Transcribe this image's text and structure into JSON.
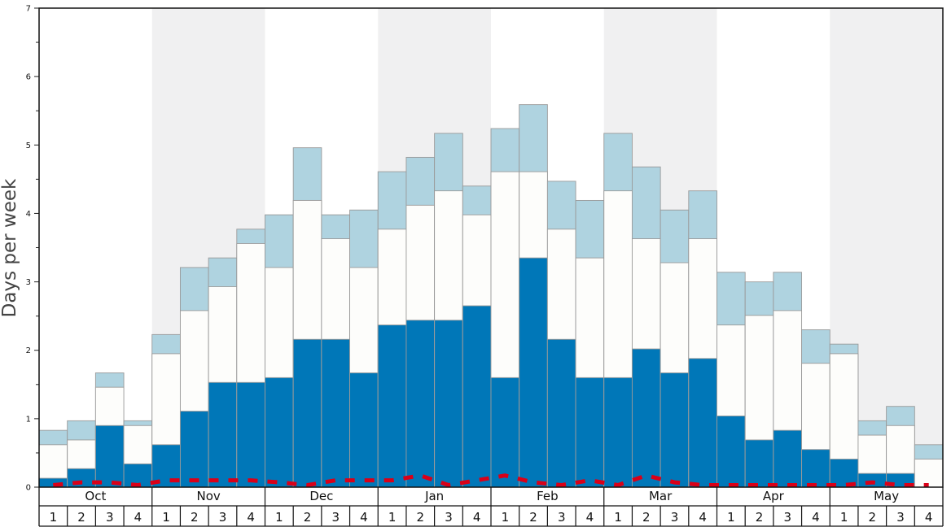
{
  "chart_data": {
    "type": "bar",
    "ylabel": "Days per week",
    "ylim": [
      0,
      7
    ],
    "y_ticks": [
      "0",
      "1",
      "2",
      "3",
      "4",
      "5",
      "6",
      "7"
    ],
    "months": [
      "Oct",
      "Nov",
      "Dec",
      "Jan",
      "Feb",
      "Mar",
      "Apr",
      "May"
    ],
    "week_labels": [
      "1",
      "2",
      "3",
      "4",
      "1",
      "2",
      "3",
      "4",
      "1",
      "2",
      "3",
      "4",
      "1",
      "2",
      "3",
      "4",
      "1",
      "2",
      "3",
      "4",
      "1",
      "2",
      "3",
      "4",
      "1",
      "2",
      "3",
      "4",
      "1",
      "2",
      "3",
      "4"
    ],
    "grid": false,
    "series": [
      {
        "color": "#0077b8",
        "values": [
          0.13,
          0.27,
          0.9,
          0.34,
          0.62,
          1.11,
          1.53,
          1.53,
          1.6,
          2.16,
          2.16,
          1.67,
          2.37,
          2.44,
          2.44,
          2.65,
          1.6,
          3.35,
          2.16,
          1.6,
          1.6,
          2.02,
          1.67,
          1.88,
          1.04,
          0.69,
          0.83,
          0.55,
          0.41,
          0.2,
          0.2,
          0
        ]
      },
      {
        "color": "#fdfdfb",
        "values": [
          0.62,
          0.69,
          1.46,
          0.9,
          1.95,
          2.58,
          2.93,
          3.56,
          3.21,
          4.19,
          3.63,
          3.21,
          3.77,
          4.12,
          4.33,
          3.98,
          4.61,
          4.61,
          3.77,
          3.35,
          4.33,
          3.63,
          3.28,
          3.63,
          2.37,
          2.51,
          2.58,
          1.81,
          1.95,
          0.76,
          0.9,
          0.41
        ]
      },
      {
        "color": "#afd3e0",
        "values": [
          0.83,
          0.97,
          1.67,
          0.97,
          2.23,
          3.21,
          3.35,
          3.77,
          3.98,
          4.96,
          3.98,
          4.05,
          4.61,
          4.82,
          5.17,
          4.4,
          5.24,
          5.59,
          4.47,
          4.19,
          5.17,
          4.68,
          4.05,
          4.33,
          3.14,
          3,
          3.14,
          2.3,
          2.09,
          0.97,
          1.18,
          0.62
        ]
      },
      {
        "color": "#d90018",
        "style": "dashed",
        "values": [
          0.03,
          0.07,
          0.07,
          0.03,
          0.1,
          0.1,
          0.1,
          0.1,
          0.07,
          0.03,
          0.1,
          0.1,
          0.1,
          0.17,
          0.03,
          0.1,
          0.17,
          0.07,
          0.03,
          0.1,
          0.03,
          0.17,
          0.07,
          0.03,
          0.03,
          0.03,
          0.03,
          0.03,
          0.03,
          0.07,
          0.03,
          0.03
        ]
      }
    ]
  }
}
